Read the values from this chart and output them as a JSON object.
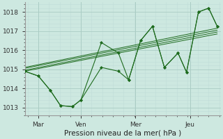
{
  "background_color": "#cde8e0",
  "grid_color_major": "#aaccc4",
  "grid_color_minor": "#c0ddd8",
  "line_color": "#1e6b1e",
  "marker_color": "#1e6b1e",
  "ylabel_ticks": [
    1013,
    1014,
    1015,
    1016,
    1017,
    1018
  ],
  "xlim": [
    0,
    11.5
  ],
  "ylim": [
    1012.6,
    1018.5
  ],
  "xlabel": "Pression niveau de la mer( hPa )",
  "xtick_positions": [
    0.8,
    3.3,
    6.5,
    9.7
  ],
  "xtick_labels": [
    "Mar",
    "Ven",
    "Mer",
    "Jeu"
  ],
  "xvline_positions": [
    0.8,
    3.3,
    6.5,
    9.7
  ],
  "series1_x": [
    0.0,
    0.8,
    1.5,
    2.1,
    2.8,
    3.3,
    4.5,
    5.5,
    6.1,
    6.8,
    7.5,
    8.2,
    9.0,
    9.5,
    10.2,
    10.8,
    11.3
  ],
  "series1_y": [
    1014.9,
    1014.65,
    1013.9,
    1013.1,
    1013.05,
    1013.4,
    1015.1,
    1014.9,
    1014.45,
    1016.5,
    1017.25,
    1015.1,
    1015.85,
    1014.85,
    1018.0,
    1018.2,
    1017.25
  ],
  "series2_x": [
    0.0,
    0.8,
    1.5,
    2.1,
    2.8,
    3.3,
    4.5,
    5.5,
    6.1,
    6.8,
    7.5,
    8.2,
    9.0,
    9.5,
    10.2,
    10.8,
    11.3
  ],
  "series2_y": [
    1014.9,
    1014.65,
    1013.9,
    1013.1,
    1013.05,
    1013.4,
    1016.4,
    1015.85,
    1014.45,
    1016.5,
    1017.25,
    1015.1,
    1015.85,
    1014.85,
    1018.0,
    1018.2,
    1017.25
  ],
  "trend_lines": [
    {
      "x": [
        0.0,
        11.3
      ],
      "y": [
        1014.9,
        1016.85
      ]
    },
    {
      "x": [
        0.0,
        11.3
      ],
      "y": [
        1014.95,
        1016.95
      ]
    },
    {
      "x": [
        0.0,
        11.3
      ],
      "y": [
        1015.05,
        1017.05
      ]
    },
    {
      "x": [
        0.0,
        11.3
      ],
      "y": [
        1015.1,
        1017.15
      ]
    }
  ]
}
